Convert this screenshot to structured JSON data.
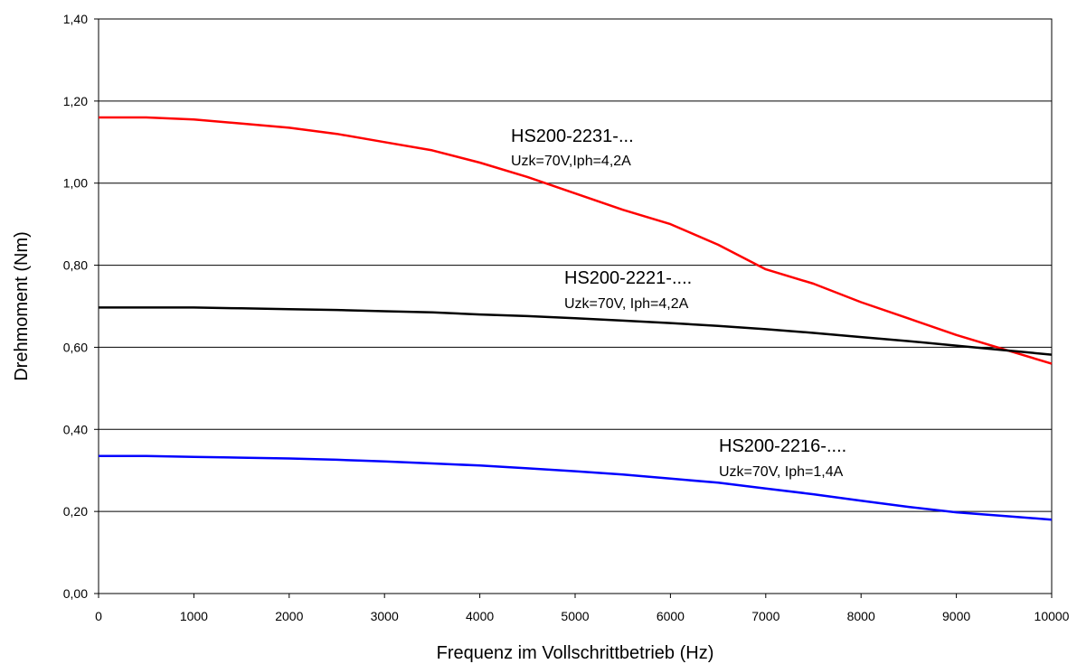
{
  "chart_data": {
    "type": "line",
    "xlabel": "Frequenz im Vollschrittbetrieb (Hz)",
    "ylabel": "Drehmoment (Nm)",
    "xlim": [
      0,
      10000
    ],
    "ylim": [
      0,
      1.4
    ],
    "x_ticks": [
      "0",
      "1000",
      "2000",
      "3000",
      "4000",
      "5000",
      "6000",
      "7000",
      "8000",
      "9000",
      "10000"
    ],
    "y_ticks": [
      "0,00",
      "0,20",
      "0,40",
      "0,60",
      "0,80",
      "1,00",
      "1,20",
      "1,40"
    ],
    "grid": "horizontal",
    "series": [
      {
        "color": "#ff0000",
        "x": [
          0,
          500,
          1000,
          1500,
          2000,
          2500,
          3000,
          3500,
          4000,
          4500,
          5000,
          5500,
          6000,
          6500,
          7000,
          7500,
          8000,
          8500,
          9000,
          9500,
          10000
        ],
        "y": [
          1.16,
          1.16,
          1.155,
          1.145,
          1.135,
          1.12,
          1.1,
          1.08,
          1.05,
          1.015,
          0.975,
          0.935,
          0.9,
          0.85,
          0.79,
          0.755,
          0.71,
          0.67,
          0.63,
          0.595,
          0.56
        ]
      },
      {
        "color": "#000000",
        "x": [
          0,
          500,
          1000,
          1500,
          2000,
          2500,
          3000,
          3500,
          4000,
          4500,
          5000,
          5500,
          6000,
          6500,
          7000,
          7500,
          8000,
          8500,
          9000,
          9500,
          10000
        ],
        "y": [
          0.697,
          0.697,
          0.697,
          0.695,
          0.693,
          0.691,
          0.688,
          0.685,
          0.68,
          0.676,
          0.671,
          0.665,
          0.659,
          0.652,
          0.644,
          0.635,
          0.625,
          0.615,
          0.604,
          0.593,
          0.582
        ]
      },
      {
        "color": "#0000ff",
        "x": [
          0,
          500,
          1000,
          1500,
          2000,
          2500,
          3000,
          3500,
          4000,
          4500,
          5000,
          5500,
          6000,
          6500,
          7000,
          7500,
          8000,
          8500,
          9000,
          9500,
          10000
        ],
        "y": [
          0.335,
          0.335,
          0.333,
          0.331,
          0.329,
          0.326,
          0.322,
          0.317,
          0.312,
          0.305,
          0.298,
          0.29,
          0.28,
          0.27,
          0.256,
          0.242,
          0.226,
          0.211,
          0.198,
          0.189,
          0.18
        ]
      }
    ],
    "annotations": [
      {
        "title": "HS200-2231-...",
        "subtitle": "Uzk=70V,Iph=4,2A"
      },
      {
        "title": "HS200-2221-....",
        "subtitle": "Uzk=70V, Iph=4,2A"
      },
      {
        "title": "HS200-2216-....",
        "subtitle": "Uzk=70V, Iph=1,4A"
      }
    ]
  }
}
